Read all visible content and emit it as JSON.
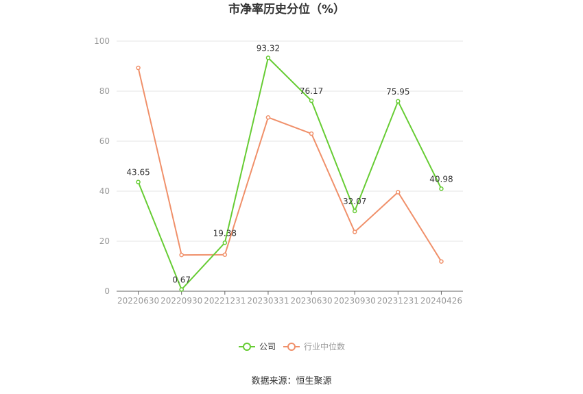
{
  "chart_data": {
    "type": "line",
    "title": "市净率历史分位（%）",
    "categories": [
      "20220630",
      "20220930",
      "20221231",
      "20230331",
      "20230630",
      "20230930",
      "20231231",
      "20240426"
    ],
    "series": [
      {
        "name": "公司",
        "color": "#66cc33",
        "values": [
          43.65,
          0.67,
          19.38,
          93.32,
          76.17,
          32.07,
          75.95,
          40.98
        ],
        "labels": [
          "43.65",
          "0.67",
          "19.38",
          "93.32",
          "76.17",
          "32.07",
          "75.95",
          "40.98"
        ]
      },
      {
        "name": "行业中位数",
        "color": "#f0906a",
        "values": [
          89.3,
          14.5,
          14.6,
          69.5,
          63.0,
          23.7,
          39.6,
          11.9
        ]
      }
    ],
    "ylim": [
      0,
      100
    ],
    "yticks": [
      "0",
      "20",
      "40",
      "60",
      "80",
      "100"
    ],
    "ytick_values": [
      0,
      20,
      40,
      60,
      80,
      100
    ],
    "grid": true,
    "legend_position": "bottom-center"
  },
  "source_text": "数据来源：恒生聚源"
}
